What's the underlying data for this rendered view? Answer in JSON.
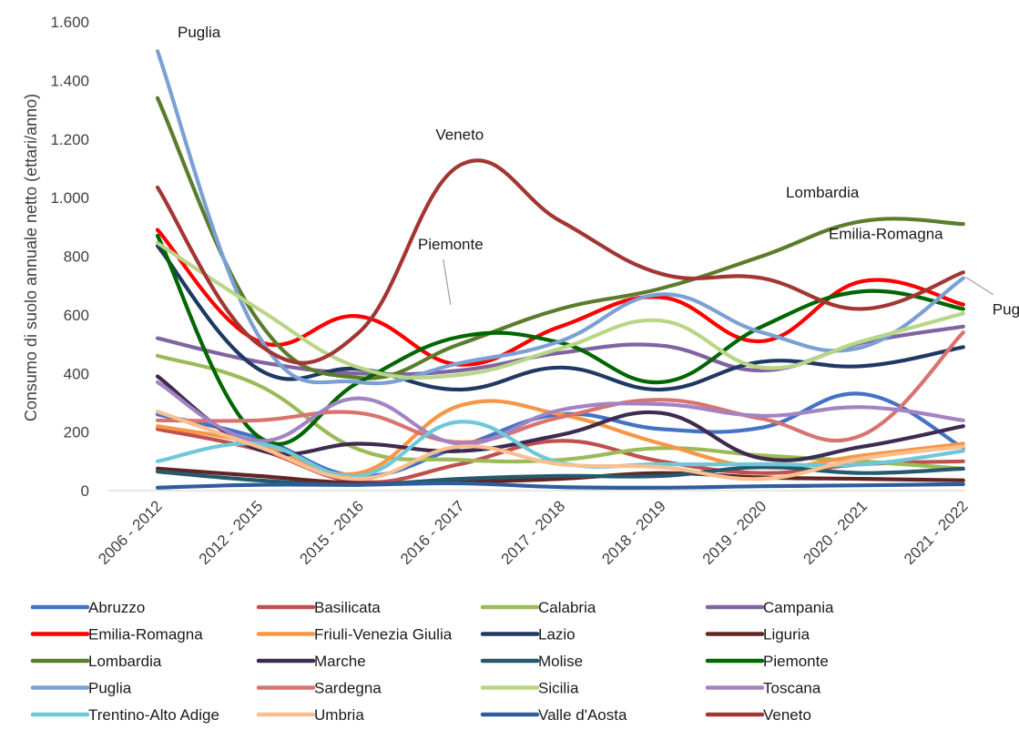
{
  "chart_data": {
    "type": "line",
    "title": "",
    "xlabel": "",
    "ylabel": "Consumo di suolo annuale netto (ettari/anno)",
    "ylim": [
      0,
      1600
    ],
    "yticks": [
      0,
      200,
      400,
      600,
      800,
      1000,
      1200,
      1400,
      1600
    ],
    "ytick_labels": [
      "0",
      "200",
      "400",
      "600",
      "800",
      "1.000",
      "1.200",
      "1.400",
      "1.600"
    ],
    "categories": [
      "2006 - 2012",
      "2012 - 2015",
      "2015 - 2016",
      "2016 - 2017",
      "2017 - 2018",
      "2018 - 2019",
      "2019 - 2020",
      "2020 - 2021",
      "2021 - 2022"
    ],
    "grid": false,
    "legend_position": "bottom",
    "series": [
      {
        "name": "Abruzzo",
        "color": "#4472C4",
        "values": [
          260,
          180,
          50,
          150,
          260,
          210,
          215,
          330,
          145
        ]
      },
      {
        "name": "Basilicata",
        "color": "#C0504D",
        "values": [
          210,
          140,
          30,
          90,
          170,
          100,
          60,
          90,
          100
        ]
      },
      {
        "name": "Calabria",
        "color": "#9BBB59",
        "values": [
          460,
          360,
          140,
          105,
          105,
          145,
          120,
          100,
          75
        ]
      },
      {
        "name": "Campania",
        "color": "#8064A2",
        "values": [
          520,
          440,
          400,
          410,
          470,
          495,
          410,
          505,
          560
        ]
      },
      {
        "name": "Emilia-Romagna",
        "color": "#FF0000",
        "values": [
          890,
          510,
          595,
          430,
          560,
          660,
          510,
          715,
          635
        ]
      },
      {
        "name": "Friuli-Venezia Giulia",
        "color": "#F79646",
        "values": [
          220,
          160,
          60,
          290,
          260,
          160,
          80,
          120,
          160
        ]
      },
      {
        "name": "Lazio",
        "color": "#1F3864",
        "values": [
          835,
          415,
          415,
          345,
          420,
          345,
          440,
          425,
          490
        ]
      },
      {
        "name": "Liguria",
        "color": "#632523",
        "values": [
          75,
          50,
          25,
          30,
          40,
          60,
          45,
          40,
          35
        ]
      },
      {
        "name": "Lombardia",
        "color": "#5A7D2C",
        "values": [
          1340,
          580,
          385,
          500,
          620,
          690,
          800,
          920,
          910
        ]
      },
      {
        "name": "Marche",
        "color": "#3F2A50",
        "values": [
          390,
          140,
          160,
          135,
          190,
          265,
          110,
          150,
          220
        ]
      },
      {
        "name": "Molise",
        "color": "#24596E",
        "values": [
          65,
          35,
          20,
          40,
          50,
          50,
          80,
          60,
          75
        ]
      },
      {
        "name": "Piemonte",
        "color": "#006600",
        "values": [
          870,
          185,
          370,
          525,
          505,
          370,
          560,
          680,
          620
        ]
      },
      {
        "name": "Puglia",
        "color": "#7BA0D4",
        "values": [
          1500,
          530,
          370,
          435,
          510,
          670,
          540,
          490,
          725
        ]
      },
      {
        "name": "Sardegna",
        "color": "#D9736E",
        "values": [
          240,
          240,
          265,
          165,
          250,
          310,
          245,
          190,
          540
        ]
      },
      {
        "name": "Sicilia",
        "color": "#B8D686",
        "values": [
          845,
          620,
          420,
          395,
          485,
          580,
          420,
          510,
          605
        ]
      },
      {
        "name": "Toscana",
        "color": "#A383C2",
        "values": [
          370,
          170,
          315,
          160,
          275,
          295,
          255,
          285,
          240
        ]
      },
      {
        "name": "Trentino-Alto Adige",
        "color": "#6FC8D8",
        "values": [
          100,
          160,
          50,
          235,
          95,
          90,
          90,
          90,
          135
        ]
      },
      {
        "name": "Umbria",
        "color": "#FABF8F",
        "values": [
          270,
          150,
          40,
          150,
          90,
          80,
          40,
          110,
          150
        ]
      },
      {
        "name": "Valle d'Aosta",
        "color": "#2E5D9B",
        "values": [
          10,
          20,
          20,
          25,
          12,
          10,
          15,
          18,
          22
        ]
      },
      {
        "name": "Veneto",
        "color": "#A23634",
        "values": [
          1035,
          500,
          540,
          1110,
          920,
          740,
          725,
          620,
          745
        ]
      }
    ],
    "annotations": [
      {
        "text": "Puglia",
        "series": "Puglia",
        "category": "2006 - 2012"
      },
      {
        "text": "Veneto",
        "series": "Veneto",
        "category": "2016 - 2017"
      },
      {
        "text": "Piemonte",
        "series": "Piemonte",
        "category": "2016 - 2017"
      },
      {
        "text": "Lombardia",
        "series": "Lombardia",
        "category": "2020 - 2021"
      },
      {
        "text": "Emilia-Romagna",
        "series": "Emilia-Romagna",
        "category": "2021 - 2022"
      },
      {
        "text": "Puglia",
        "series": "Puglia",
        "category": "2021 - 2022"
      }
    ]
  }
}
